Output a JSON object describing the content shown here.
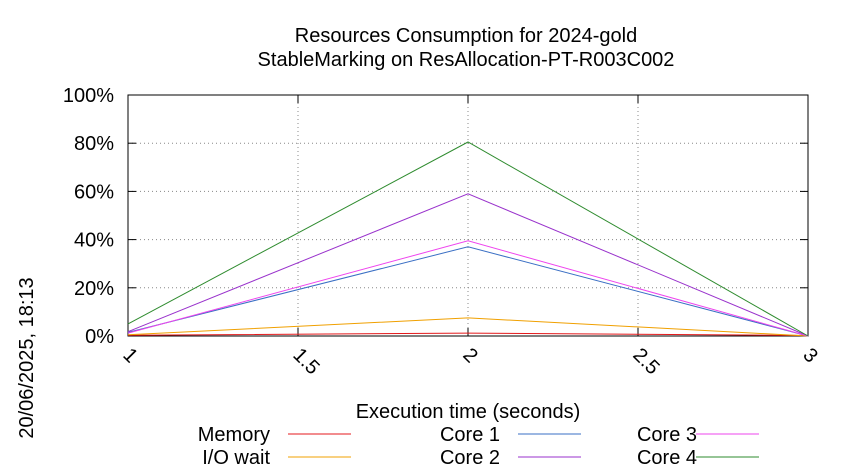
{
  "chart_data": {
    "type": "line",
    "title": [
      "Resources Consumption for 2024-gold",
      "StableMarking on ResAllocation-PT-R003C002"
    ],
    "xlabel": "Execution time (seconds)",
    "ylabel": "",
    "side_label": "20/06/2025, 18:13",
    "xlim": [
      1,
      3
    ],
    "ylim": [
      0,
      100
    ],
    "x_ticks": [
      {
        "value": 1,
        "label": "1"
      },
      {
        "value": 1.5,
        "label": "1.5"
      },
      {
        "value": 2,
        "label": "2"
      },
      {
        "value": 2.5,
        "label": "2.5"
      },
      {
        "value": 3,
        "label": "3"
      }
    ],
    "y_ticks": [
      {
        "value": 0,
        "label": "0%"
      },
      {
        "value": 20,
        "label": "20%"
      },
      {
        "value": 40,
        "label": "40%"
      },
      {
        "value": 60,
        "label": "60%"
      },
      {
        "value": 80,
        "label": "80%"
      },
      {
        "value": 100,
        "label": "100%"
      }
    ],
    "grid": true,
    "legend_position": "bottom",
    "x": [
      1,
      2,
      3
    ],
    "series": [
      {
        "name": "Memory",
        "color": "#e41a1c",
        "values": [
          0.3,
          1.2,
          0.2
        ]
      },
      {
        "name": "I/O wait",
        "color": "#f0a000",
        "values": [
          0.5,
          7.5,
          0
        ]
      },
      {
        "name": "Core 1",
        "color": "#3a6fc4",
        "values": [
          1.5,
          37,
          0
        ]
      },
      {
        "name": "Core 2",
        "color": "#9932cc",
        "values": [
          1.8,
          59,
          0
        ]
      },
      {
        "name": "Core 3",
        "color": "#ee44ee",
        "values": [
          1.2,
          39.5,
          0
        ]
      },
      {
        "name": "Core 4",
        "color": "#2e8b2e",
        "values": [
          5,
          80.5,
          0
        ]
      }
    ]
  }
}
